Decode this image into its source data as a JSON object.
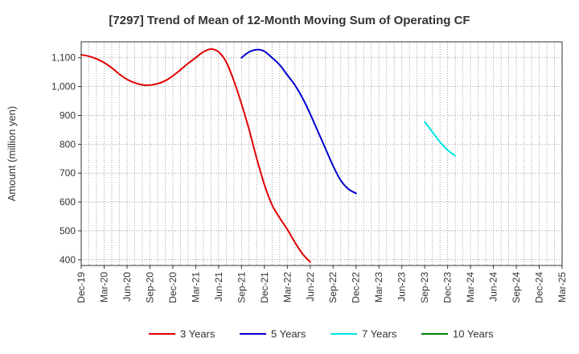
{
  "chart_data": {
    "type": "line",
    "title": "[7297]  Trend of Mean of 12-Month Moving Sum of Operating CF",
    "xlabel": "",
    "ylabel": "Amount (million yen)",
    "ylim": [
      380,
      1155
    ],
    "yticks": [
      400,
      500,
      600,
      700,
      800,
      900,
      1000,
      1100
    ],
    "ytick_labels": [
      "400",
      "500",
      "600",
      "700",
      "800",
      "900",
      "1,000",
      "1,100"
    ],
    "x_labels": [
      "Dec-19",
      "Mar-20",
      "Jun-20",
      "Sep-20",
      "Dec-20",
      "Mar-21",
      "Jun-21",
      "Sep-21",
      "Dec-21",
      "Mar-22",
      "Jun-22",
      "Sep-22",
      "Dec-22",
      "Mar-23",
      "Jun-23",
      "Sep-23",
      "Dec-23",
      "Mar-24",
      "Jun-24",
      "Sep-24",
      "Dec-24",
      "Mar-25"
    ],
    "grid": true,
    "legend_position": "bottom",
    "series": [
      {
        "name": "3 Years",
        "color": "#e00000",
        "start_index": 0,
        "values": [
          1110,
          1105,
          1096,
          1083,
          1065,
          1043,
          1025,
          1013,
          1006,
          1005,
          1010,
          1020,
          1037,
          1058,
          1080,
          1100,
          1120,
          1130,
          1120,
          1085,
          1020,
          940,
          850,
          750,
          660,
          590,
          545,
          505,
          460,
          420,
          392
        ]
      },
      {
        "name": "5 Years",
        "color": "#0000cc",
        "start_index": 21,
        "values": [
          1100,
          1120,
          1128,
          1122,
          1100,
          1075,
          1040,
          1005,
          960,
          905,
          845,
          785,
          725,
          675,
          645,
          630
        ]
      },
      {
        "name": "7 Years",
        "color": "#00e5e5",
        "start_index": 45,
        "values": [
          878,
          843,
          808,
          780,
          760
        ]
      },
      {
        "name": "10 Years",
        "color": "#008000",
        "start_index": 0,
        "values": []
      }
    ]
  }
}
